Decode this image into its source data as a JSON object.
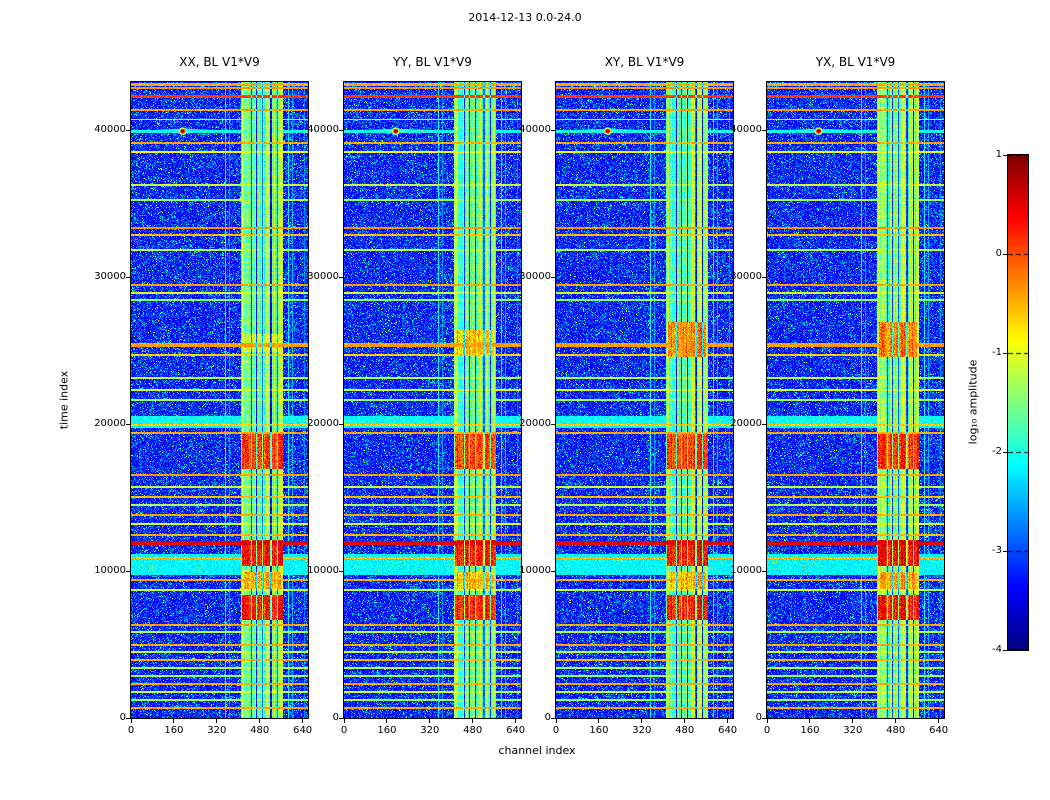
{
  "figure": {
    "title": "2014-12-13 0.0-24.0"
  },
  "axes": {
    "xlabel": "channel index",
    "ylabel": "time index"
  },
  "colorbar": {
    "label": "log₁₀ amplitude",
    "ticks": [
      "1",
      "0",
      "-1",
      "-2",
      "-3",
      "-4"
    ],
    "tick_values": [
      1,
      0,
      -1,
      -2,
      -3,
      -4
    ],
    "vmin": -4,
    "vmax": 1,
    "colormap": "jet"
  },
  "chart_data": {
    "type": "heatmap",
    "title": "2014-12-13 0.0-24.0",
    "xlabel": "channel index",
    "ylabel": "time index",
    "xlim": [
      0,
      660
    ],
    "ylim": [
      0,
      43300
    ],
    "xticks": [
      0,
      160,
      320,
      480,
      640
    ],
    "yticks": [
      0,
      10000,
      20000,
      30000,
      40000
    ],
    "colormap": "jet",
    "value_range": [
      -4,
      1
    ],
    "legend": "none",
    "grid": false,
    "panels": [
      {
        "title": "XX, BL V1*V9",
        "seed": 11
      },
      {
        "title": "YY, BL V1*V9",
        "seed": 23
      },
      {
        "title": "XY, BL V1*V9",
        "seed": 37
      },
      {
        "title": "YX, BL V1*V9",
        "seed": 49
      }
    ],
    "background_level": -3.55,
    "rfi_band": {
      "c0": 412,
      "c1": 568,
      "level": -1.55
    },
    "vertical_lines": [
      [
        352,
        1.6,
        1,
        -2.15
      ],
      [
        368,
        1.2,
        1,
        -2.65
      ],
      [
        419,
        4.0,
        1,
        -1.15
      ],
      [
        448,
        2.0,
        0,
        0
      ],
      [
        468,
        1.5,
        0,
        0
      ],
      [
        490,
        2.0,
        0,
        0
      ],
      [
        508,
        1.6,
        1,
        -1.05
      ],
      [
        522,
        2.0,
        0,
        0
      ],
      [
        536,
        1.6,
        1,
        -1.1
      ],
      [
        548,
        2.0,
        0,
        0
      ],
      [
        560,
        3.0,
        1,
        -1.25
      ],
      [
        586,
        1.6,
        1,
        -2.2
      ],
      [
        601,
        1.4,
        1,
        -2.55
      ],
      [
        646,
        1.2,
        1,
        -2.75
      ]
    ],
    "horizontal_stripes": [
      [
        43150,
        90,
        -0.45
      ],
      [
        42870,
        70,
        -0.35
      ],
      [
        42300,
        110,
        0.1
      ],
      [
        41400,
        80,
        -0.4
      ],
      [
        40750,
        60,
        -1.3
      ],
      [
        39950,
        100,
        -2.05
      ],
      [
        39150,
        80,
        -0.45
      ],
      [
        38550,
        60,
        -0.95
      ],
      [
        36300,
        55,
        -1.15
      ],
      [
        35260,
        55,
        -1.35
      ],
      [
        33370,
        90,
        -0.35
      ],
      [
        32880,
        70,
        -0.55
      ],
      [
        31860,
        55,
        -1.25
      ],
      [
        29480,
        80,
        -0.4
      ],
      [
        28930,
        55,
        -1.05
      ],
      [
        28460,
        55,
        -1.45
      ],
      [
        25400,
        130,
        -0.4
      ],
      [
        24720,
        80,
        -0.65
      ],
      [
        23140,
        55,
        -1.25
      ],
      [
        22330,
        55,
        -1.05
      ],
      [
        21650,
        55,
        -1.35
      ],
      [
        20150,
        380,
        -2.1
      ],
      [
        19920,
        70,
        -0.6
      ],
      [
        19400,
        80,
        -0.45
      ],
      [
        16540,
        80,
        -0.4
      ],
      [
        15730,
        55,
        -1.15
      ],
      [
        15050,
        75,
        -0.55
      ],
      [
        14500,
        55,
        -1.25
      ],
      [
        13820,
        75,
        -0.45
      ],
      [
        13210,
        55,
        -1.05
      ],
      [
        12460,
        75,
        -0.5
      ],
      [
        11920,
        160,
        0.5
      ],
      [
        10920,
        70,
        -0.55
      ],
      [
        10450,
        720,
        -2.15
      ],
      [
        9400,
        75,
        -0.45
      ],
      [
        8720,
        55,
        -1.15
      ],
      [
        6340,
        75,
        -0.45
      ],
      [
        5860,
        55,
        -1.25
      ],
      [
        4980,
        75,
        -0.45
      ],
      [
        4500,
        55,
        -1.15
      ],
      [
        3960,
        75,
        -0.5
      ],
      [
        3410,
        55,
        -1.25
      ],
      [
        2870,
        55,
        -1.35
      ],
      [
        2320,
        75,
        -0.45
      ],
      [
        1780,
        55,
        -1.15
      ],
      [
        1240,
        55,
        -1.35
      ],
      [
        690,
        75,
        -0.45
      ]
    ],
    "blobs": [
      {
        "t0": 6650,
        "t1": 8350,
        "c0": 414,
        "c1": 566,
        "level": 0.25,
        "panels": [
          0,
          1,
          2,
          3
        ]
      },
      {
        "t0": 8800,
        "t1": 9950,
        "c0": 420,
        "c1": 560,
        "level": -0.5,
        "panels": [
          0,
          1,
          2,
          3
        ]
      },
      {
        "t0": 10350,
        "t1": 12150,
        "c0": 414,
        "c1": 566,
        "level": 0.3,
        "panels": [
          0,
          1,
          2,
          3
        ]
      },
      {
        "t0": 16950,
        "t1": 19350,
        "c0": 414,
        "c1": 566,
        "level": 0.1,
        "panels": [
          0,
          1,
          2,
          3
        ]
      },
      {
        "t0": 24600,
        "t1": 26950,
        "c0": 416,
        "c1": 560,
        "level": -0.25,
        "panels": [
          2,
          3
        ]
      },
      {
        "t0": 24750,
        "t1": 26400,
        "c0": 418,
        "c1": 558,
        "level": -0.55,
        "panels": [
          1
        ]
      },
      {
        "t0": 24950,
        "t1": 26150,
        "c0": 420,
        "c1": 555,
        "level": -1.05,
        "panels": [
          0
        ]
      }
    ],
    "point_source": {
      "channel": 193,
      "time": 39950,
      "sigma_c": 9,
      "sigma_t": 150,
      "peak": 1.0
    }
  }
}
